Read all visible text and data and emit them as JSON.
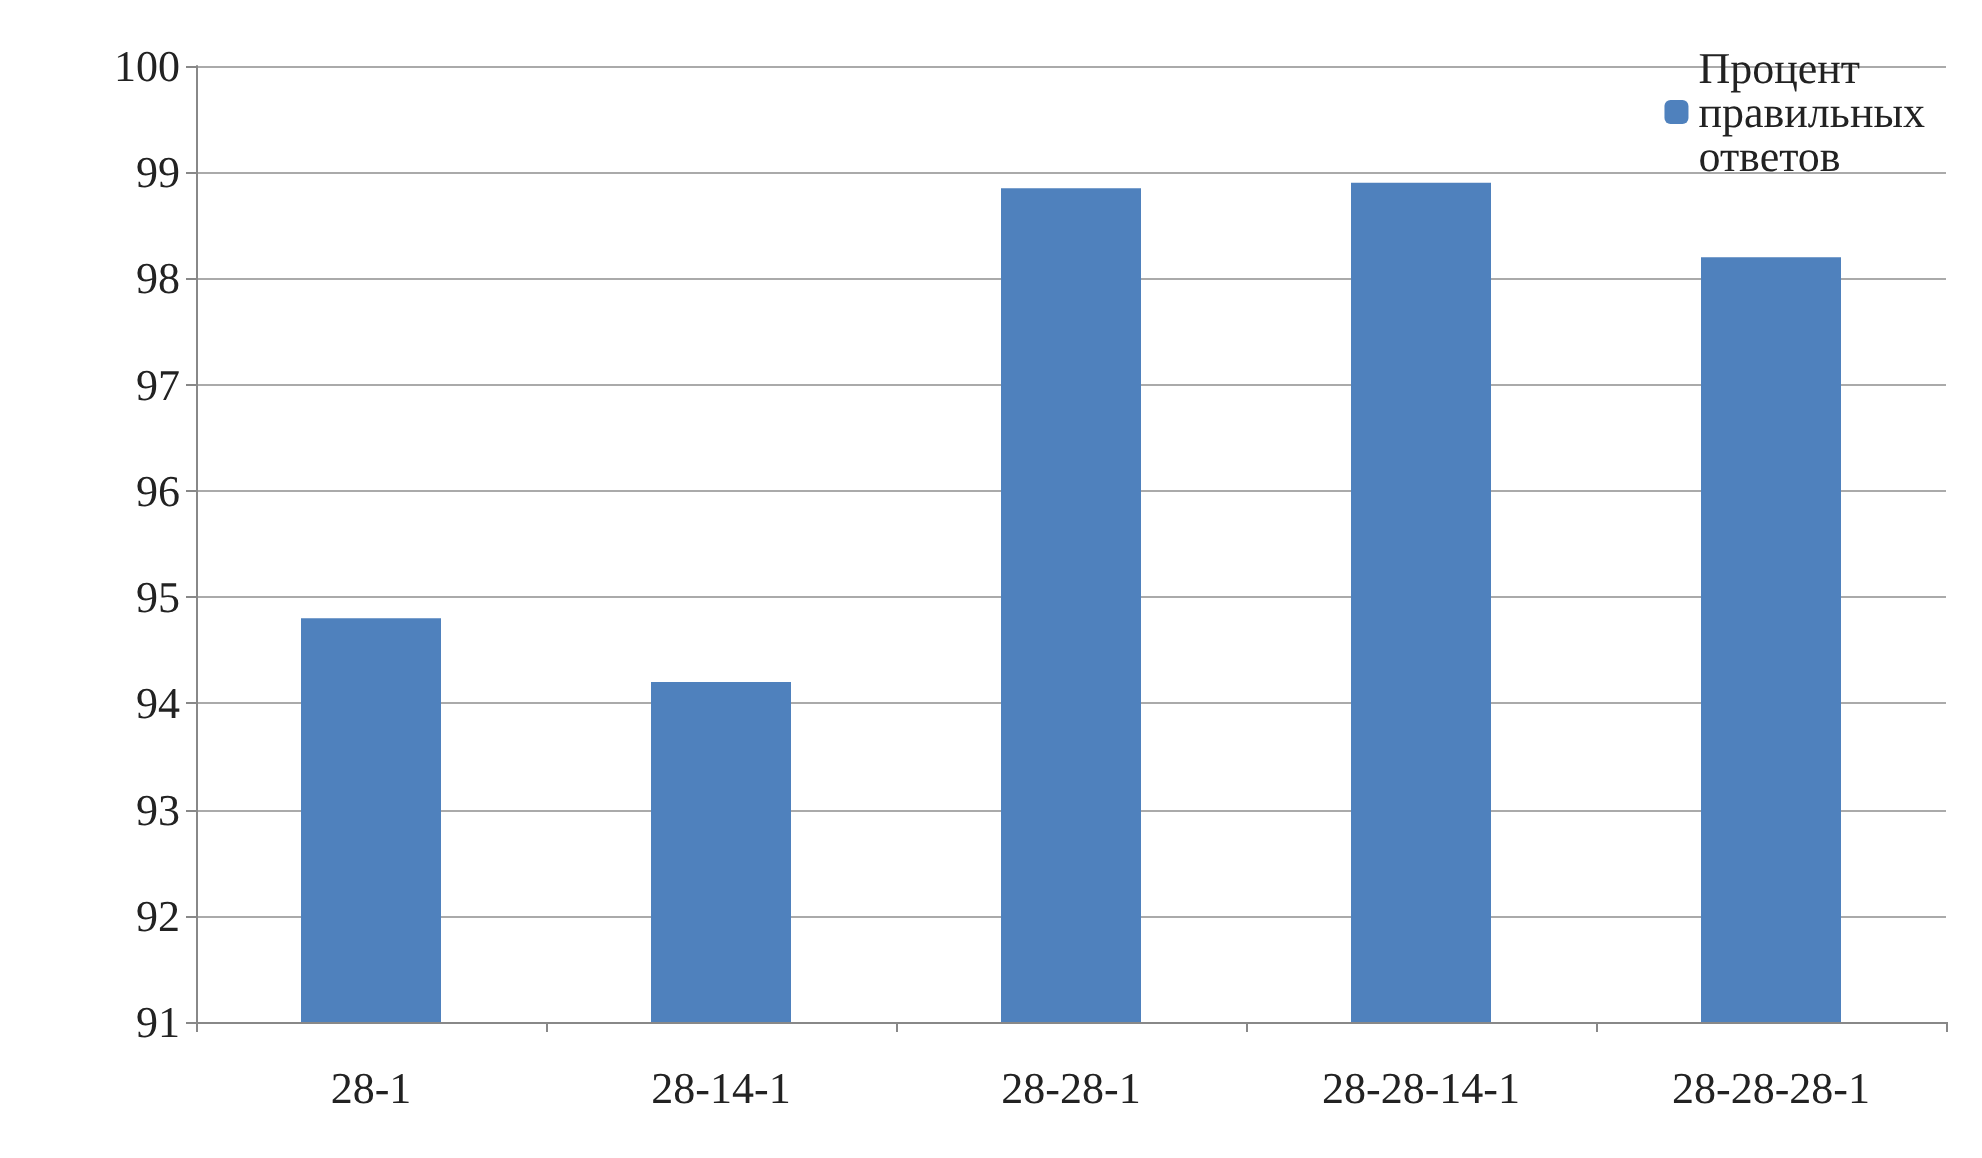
{
  "chart_data": {
    "type": "bar",
    "categories": [
      "28-1",
      "28-14-1",
      "28-28-1",
      "28-28-14-1",
      "28-28-28-1"
    ],
    "series": [
      {
        "name": "Процент правильных ответов",
        "color": "#4f81bd",
        "values": [
          94.8,
          94.2,
          98.85,
          98.9,
          98.2
        ]
      }
    ],
    "ylim": [
      91,
      100
    ],
    "yticks": [
      91,
      92,
      93,
      94,
      95,
      96,
      97,
      98,
      99,
      100
    ],
    "grid": "y",
    "legend": "top right"
  }
}
